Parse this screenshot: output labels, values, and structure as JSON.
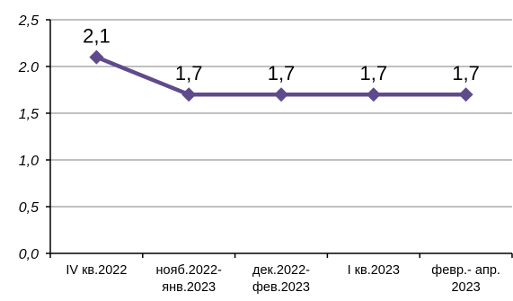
{
  "chart_data": {
    "type": "line",
    "categories": [
      [
        "IV кв.2022"
      ],
      [
        "нояб.2022-",
        "янв.2023"
      ],
      [
        "дек.2022-",
        "фев.2023"
      ],
      [
        "I кв.2023"
      ],
      [
        "февр.- апр.",
        "2023"
      ]
    ],
    "values": [
      2.1,
      1.7,
      1.7,
      1.7,
      1.7
    ],
    "data_labels": [
      "2,1",
      "1,7",
      "1,7",
      "1,7",
      "1,7"
    ],
    "y_tick_labels": [
      "0,0",
      "0,5",
      "1,0",
      "1,5",
      "2.0",
      "2,5"
    ],
    "y_ticks": [
      0,
      0.5,
      1.0,
      1.5,
      2.0,
      2.5
    ],
    "ylim": [
      0,
      2.5
    ],
    "grid": true,
    "legend": "none",
    "title": "",
    "xlabel": "",
    "ylabel": "",
    "colors": {
      "line": "#5f4b8b",
      "grid": "#9a9a9a",
      "axis": "#000000"
    }
  }
}
